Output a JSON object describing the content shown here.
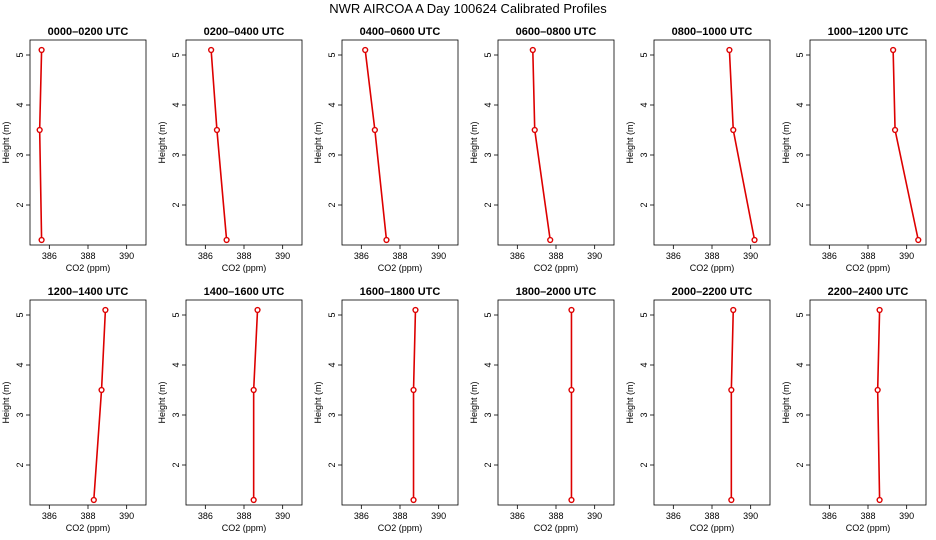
{
  "title": "NWR AIRCOA A  Day 100624  Calibrated Profiles",
  "series_color": "#dd0000",
  "chart_data": {
    "type": "line",
    "xlabel": "CO2 (ppm)",
    "ylabel": "Height (m)",
    "xlim": [
      385,
      391
    ],
    "ylim": [
      1.2,
      5.3
    ],
    "xticks": [
      386,
      388,
      390
    ],
    "yticks": [
      2,
      3,
      4,
      5
    ],
    "panels": [
      {
        "title": "0000–0200 UTC",
        "x": [
          385.6,
          385.5,
          385.6
        ],
        "y": [
          1.3,
          3.5,
          5.1
        ]
      },
      {
        "title": "0200–0400 UTC",
        "x": [
          387.1,
          386.6,
          386.3
        ],
        "y": [
          1.3,
          3.5,
          5.1
        ]
      },
      {
        "title": "0400–0600 UTC",
        "x": [
          387.3,
          386.7,
          386.2
        ],
        "y": [
          1.3,
          3.5,
          5.1
        ]
      },
      {
        "title": "0600–0800 UTC",
        "x": [
          387.7,
          386.9,
          386.8
        ],
        "y": [
          1.3,
          3.5,
          5.1
        ]
      },
      {
        "title": "0800–1000 UTC",
        "x": [
          390.2,
          389.1,
          388.9
        ],
        "y": [
          1.3,
          3.5,
          5.1
        ]
      },
      {
        "title": "1000–1200 UTC",
        "x": [
          390.6,
          389.4,
          389.3
        ],
        "y": [
          1.3,
          3.5,
          5.1
        ]
      },
      {
        "title": "1200–1400 UTC",
        "x": [
          388.3,
          388.7,
          388.9
        ],
        "y": [
          1.3,
          3.5,
          5.1
        ]
      },
      {
        "title": "1400–1600 UTC",
        "x": [
          388.5,
          388.5,
          388.7
        ],
        "y": [
          1.3,
          3.5,
          5.1
        ]
      },
      {
        "title": "1600–1800 UTC",
        "x": [
          388.7,
          388.7,
          388.8
        ],
        "y": [
          1.3,
          3.5,
          5.1
        ]
      },
      {
        "title": "1800–2000 UTC",
        "x": [
          388.8,
          388.8,
          388.8
        ],
        "y": [
          1.3,
          3.5,
          5.1
        ]
      },
      {
        "title": "2000–2200 UTC",
        "x": [
          389.0,
          389.0,
          389.1
        ],
        "y": [
          1.3,
          3.5,
          5.1
        ]
      },
      {
        "title": "2200–2400 UTC",
        "x": [
          388.6,
          388.5,
          388.6
        ],
        "y": [
          1.3,
          3.5,
          5.1
        ]
      }
    ]
  }
}
